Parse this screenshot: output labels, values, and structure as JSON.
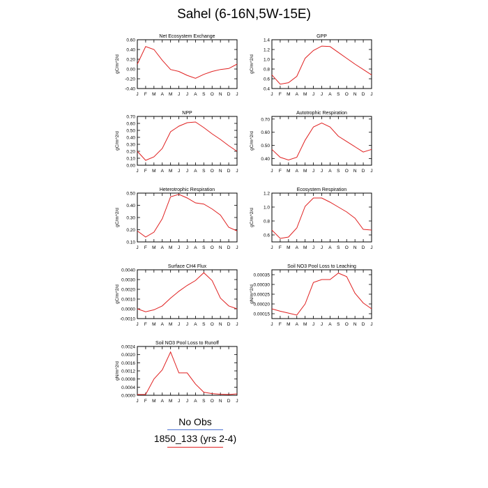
{
  "title": "Sahel (6-16N,5W-15E)",
  "legend": {
    "obs_label": "No Obs",
    "model_label": "1850_133 (yrs 2-4)",
    "obs_color": "#4a6fd1",
    "model_color": "#e02020"
  },
  "chart_data": [
    {
      "type": "line",
      "title": "Net Ecosystem Exchange",
      "ylabel": "gC/m^2/d",
      "categories": [
        "J",
        "F",
        "M",
        "A",
        "M",
        "J",
        "J",
        "A",
        "S",
        "O",
        "N",
        "D",
        "J"
      ],
      "yticks": [
        "-0.40",
        "-0.20",
        "0.00",
        "0.20",
        "0.40",
        "0.60"
      ],
      "ylim": [
        -0.4,
        0.6
      ],
      "series": [
        {
          "values": [
            0.1,
            0.46,
            0.4,
            0.18,
            -0.01,
            -0.05,
            -0.13,
            -0.19,
            -0.11,
            -0.05,
            -0.01,
            0.01,
            0.1
          ]
        }
      ]
    },
    {
      "type": "line",
      "title": "GPP",
      "ylabel": "gC/m^2/d",
      "categories": [
        "J",
        "F",
        "M",
        "A",
        "M",
        "J",
        "J",
        "A",
        "S",
        "O",
        "N",
        "D",
        "J"
      ],
      "yticks": [
        "0.4",
        "0.6",
        "0.8",
        "1.0",
        "1.2",
        "1.4"
      ],
      "ylim": [
        0.4,
        1.4
      ],
      "series": [
        {
          "values": [
            0.68,
            0.49,
            0.52,
            0.65,
            1.02,
            1.18,
            1.27,
            1.26,
            1.14,
            1.02,
            0.9,
            0.79,
            0.68
          ]
        }
      ]
    },
    {
      "type": "line",
      "title": "NPP",
      "ylabel": "gC/m^2/d",
      "categories": [
        "J",
        "F",
        "M",
        "A",
        "M",
        "J",
        "J",
        "A",
        "S",
        "O",
        "N",
        "D",
        "J"
      ],
      "yticks": [
        "0.00",
        "0.10",
        "0.20",
        "0.30",
        "0.40",
        "0.50",
        "0.60",
        "0.70"
      ],
      "ylim": [
        0.0,
        0.7
      ],
      "series": [
        {
          "values": [
            0.2,
            0.07,
            0.12,
            0.24,
            0.48,
            0.56,
            0.61,
            0.62,
            0.54,
            0.45,
            0.37,
            0.28,
            0.2
          ]
        }
      ]
    },
    {
      "type": "line",
      "title": "Autotrophic Respiration",
      "ylabel": "gC/m^2/d",
      "categories": [
        "J",
        "F",
        "M",
        "A",
        "M",
        "J",
        "J",
        "A",
        "S",
        "O",
        "N",
        "D",
        "J"
      ],
      "yticks": [
        "0.40",
        "0.50",
        "0.60",
        "0.70"
      ],
      "ylim": [
        0.35,
        0.72
      ],
      "series": [
        {
          "values": [
            0.47,
            0.41,
            0.39,
            0.41,
            0.54,
            0.64,
            0.67,
            0.64,
            0.57,
            0.53,
            0.49,
            0.45,
            0.47
          ]
        }
      ]
    },
    {
      "type": "line",
      "title": "Heterotrophic Respiration",
      "ylabel": "gC/m^2/d",
      "categories": [
        "J",
        "F",
        "M",
        "A",
        "M",
        "J",
        "J",
        "A",
        "S",
        "O",
        "N",
        "D",
        "J"
      ],
      "yticks": [
        "0.10",
        "0.20",
        "0.30",
        "0.40",
        "0.50"
      ],
      "ylim": [
        0.1,
        0.5
      ],
      "series": [
        {
          "values": [
            0.19,
            0.14,
            0.18,
            0.29,
            0.47,
            0.49,
            0.46,
            0.42,
            0.41,
            0.37,
            0.32,
            0.22,
            0.19
          ]
        }
      ]
    },
    {
      "type": "line",
      "title": "Ecosystem Respiration",
      "ylabel": "gC/m^2/d",
      "categories": [
        "J",
        "F",
        "M",
        "A",
        "M",
        "J",
        "J",
        "A",
        "S",
        "O",
        "N",
        "D",
        "J"
      ],
      "yticks": [
        "0.6",
        "0.8",
        "1.0",
        "1.2"
      ],
      "ylim": [
        0.5,
        1.2
      ],
      "series": [
        {
          "values": [
            0.67,
            0.55,
            0.57,
            0.7,
            1.01,
            1.13,
            1.13,
            1.07,
            1.0,
            0.93,
            0.84,
            0.68,
            0.67
          ]
        }
      ]
    },
    {
      "type": "line",
      "title": "Surface CH4 Flux",
      "ylabel": "gC/m^2/d",
      "categories": [
        "J",
        "F",
        "M",
        "A",
        "M",
        "J",
        "J",
        "A",
        "S",
        "O",
        "N",
        "D",
        "J"
      ],
      "yticks": [
        "-0.0010",
        "0.0000",
        "0.0010",
        "0.0020",
        "0.0030",
        "0.0040"
      ],
      "ylim": [
        -0.001,
        0.004
      ],
      "series": [
        {
          "values": [
            0.0,
            -0.0003,
            -0.0001,
            0.0003,
            0.0011,
            0.0018,
            0.0024,
            0.0029,
            0.0037,
            0.0029,
            0.0011,
            0.0003,
            0.0
          ]
        }
      ]
    },
    {
      "type": "line",
      "title": "Soil NO3 Pool Loss to Leaching",
      "ylabel": "gN/m^2/d",
      "categories": [
        "J",
        "F",
        "M",
        "A",
        "M",
        "J",
        "J",
        "A",
        "S",
        "O",
        "N",
        "D",
        "J"
      ],
      "yticks": [
        "0.00015",
        "0.00020",
        "0.00025",
        "0.00030",
        "0.00035"
      ],
      "ylim": [
        0.000125,
        0.000375
      ],
      "series": [
        {
          "values": [
            0.000175,
            0.000163,
            0.000153,
            0.000143,
            0.0002,
            0.00031,
            0.000325,
            0.000325,
            0.000358,
            0.00034,
            0.000255,
            0.000205,
            0.000175
          ]
        }
      ]
    },
    {
      "type": "line",
      "title": "Soil NO3 Pool Loss to Runoff",
      "ylabel": "gN/m^2/d",
      "categories": [
        "J",
        "F",
        "M",
        "A",
        "M",
        "J",
        "J",
        "A",
        "S",
        "O",
        "N",
        "D",
        "J"
      ],
      "yticks": [
        "0.0000",
        "0.0004",
        "0.0008",
        "0.0012",
        "0.0016",
        "0.0020",
        "0.0024"
      ],
      "ylim": [
        0.0,
        0.0024
      ],
      "series": [
        {
          "values": [
            4e-05,
            4e-05,
            0.0008,
            0.00125,
            0.00213,
            0.0011,
            0.0011,
            0.00055,
            0.00015,
            8e-05,
            5e-05,
            4e-05,
            7e-05
          ]
        }
      ]
    }
  ]
}
